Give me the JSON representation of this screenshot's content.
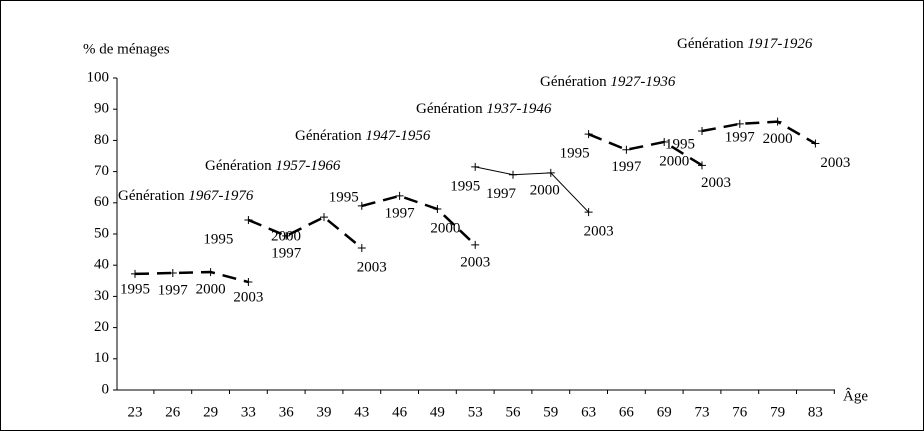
{
  "chart_data": {
    "type": "line",
    "y_label": "% de ménages",
    "x_label": "Âge",
    "series_label_prefix": "Génération",
    "point_labels": [
      "1995",
      "1997",
      "2000",
      "2003"
    ],
    "categories": [
      "23",
      "26",
      "29",
      "33",
      "36",
      "39",
      "43",
      "46",
      "49",
      "53",
      "56",
      "59",
      "63",
      "66",
      "69",
      "73",
      "76",
      "79",
      "83"
    ],
    "ylim": [
      0,
      100
    ],
    "yticks": [
      0,
      10,
      20,
      30,
      40,
      50,
      60,
      70,
      80,
      90,
      100
    ],
    "series": [
      {
        "name": "1967-1976",
        "color": "#000",
        "dashed": true,
        "values": [
          37.2,
          37.5,
          37.8,
          34.6,
          null,
          null,
          null,
          null,
          null,
          null,
          null,
          null,
          null,
          null,
          null,
          null,
          null,
          null,
          null
        ]
      },
      {
        "name": "1957-1966",
        "color": "#000",
        "dashed": true,
        "values": [
          null,
          null,
          null,
          54.5,
          49.4,
          55.4,
          45.5,
          null,
          null,
          null,
          null,
          null,
          null,
          null,
          null,
          null,
          null,
          null,
          null
        ]
      },
      {
        "name": "1947-1956",
        "color": "#000",
        "dashed": true,
        "values": [
          null,
          null,
          null,
          null,
          null,
          null,
          59,
          62.2,
          58,
          46.5,
          null,
          null,
          null,
          null,
          null,
          null,
          null,
          null,
          null
        ]
      },
      {
        "name": "1937-1946",
        "color": "#000",
        "dashed": false,
        "values": [
          null,
          null,
          null,
          null,
          null,
          null,
          null,
          null,
          null,
          71.5,
          69,
          69.6,
          57,
          null,
          null,
          null,
          null,
          null,
          null
        ]
      },
      {
        "name": "1927-1936",
        "color": "#000",
        "dashed": true,
        "values": [
          null,
          null,
          null,
          null,
          null,
          null,
          null,
          null,
          null,
          null,
          null,
          null,
          82,
          77,
          79.5,
          72,
          null,
          null,
          null
        ]
      },
      {
        "name": "1917-1926",
        "color": "#000",
        "dashed": true,
        "values": [
          null,
          null,
          null,
          null,
          null,
          null,
          null,
          null,
          null,
          null,
          null,
          null,
          null,
          null,
          null,
          83,
          85.3,
          86,
          79
        ]
      }
    ]
  }
}
